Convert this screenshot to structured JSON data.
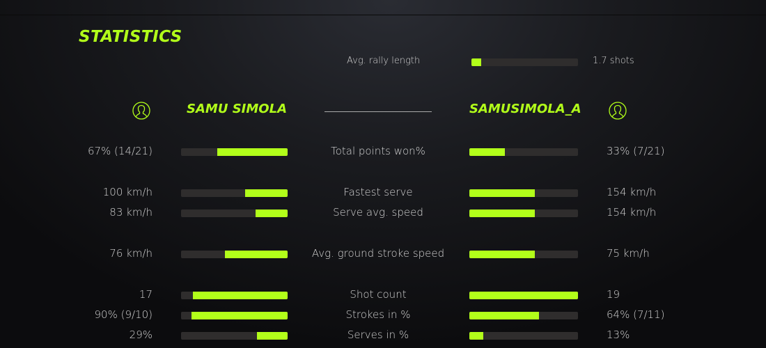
{
  "title": "STATISTICS",
  "rally": {
    "label": "Avg. rally length",
    "value": "1.7 shots",
    "pct": 9
  },
  "players": {
    "left": {
      "name": "SAMU SIMOLA",
      "icon": "user-circle-icon"
    },
    "right": {
      "name": "SAMUSIMOLA_A",
      "icon": "user-circle-icon"
    }
  },
  "accent": "#b2ff1a",
  "stats": [
    {
      "label": "Total points won%",
      "left": "67% (14/21)",
      "right": "33% (7/21)",
      "left_pct": 66,
      "right_pct": 33
    },
    {
      "label": "Fastest serve",
      "left": "100 km/h",
      "right": "154 km/h",
      "left_pct": 40,
      "right_pct": 60
    },
    {
      "label": "Serve avg. speed",
      "left": "83 km/h",
      "right": "154 km/h",
      "left_pct": 30,
      "right_pct": 60
    },
    {
      "label": "Avg. ground stroke speed",
      "left": "76 km/h",
      "right": "75 km/h",
      "left_pct": 59,
      "right_pct": 60
    },
    {
      "label": "Shot count",
      "left": "17",
      "right": "19",
      "left_pct": 89,
      "right_pct": 100
    },
    {
      "label": "Strokes in %",
      "left": "90% (9/10)",
      "right": "64% (7/11)",
      "left_pct": 90,
      "right_pct": 64
    },
    {
      "label": "Serves in %",
      "left": "29%",
      "right": "13%",
      "left_pct": 29,
      "right_pct": 13
    }
  ]
}
